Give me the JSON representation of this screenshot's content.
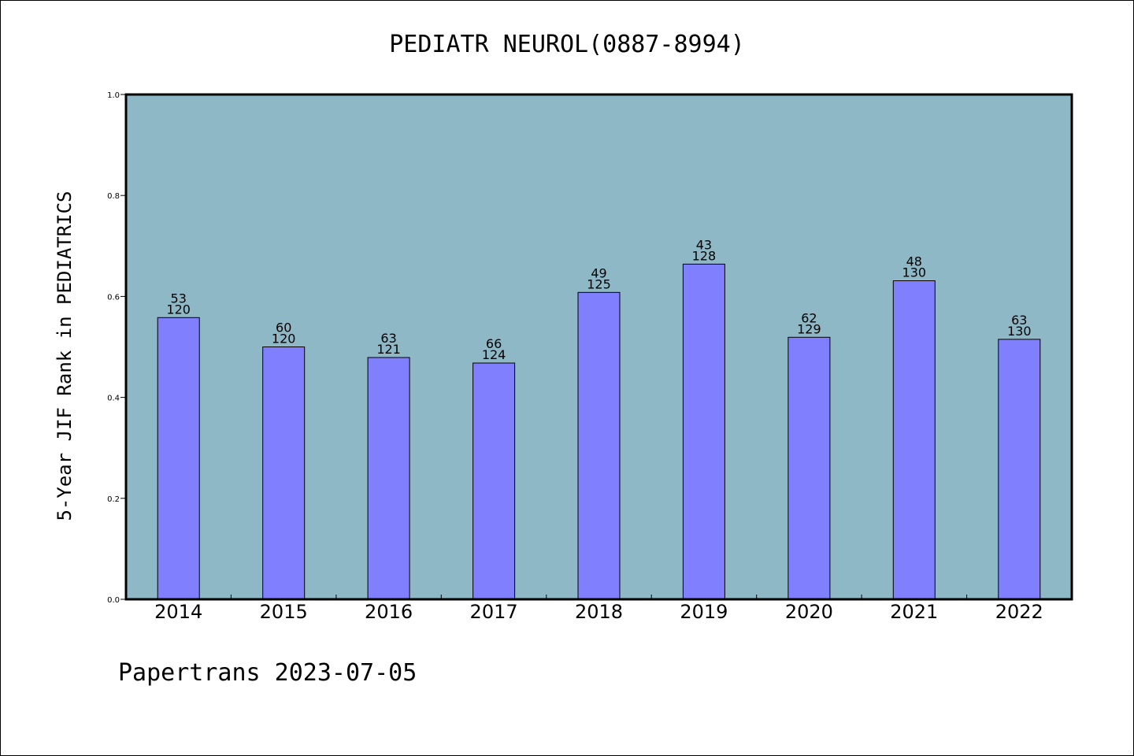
{
  "chart_data": {
    "type": "bar",
    "title": "PEDIATR NEUROL(0887-8994)",
    "xlabel": "",
    "ylabel": "5-Year JIF Rank in PEDIATRICS",
    "ylim": [
      0,
      1.0
    ],
    "yticks": [
      "0.0",
      "0.2",
      "0.4",
      "0.6",
      "0.8",
      "1.0"
    ],
    "grid": false,
    "plot_background": "#8fb8c6",
    "bar_color": "#8080ff",
    "categories": [
      "2014",
      "2015",
      "2016",
      "2017",
      "2018",
      "2019",
      "2020",
      "2021",
      "2022"
    ],
    "values": [
      0.558,
      0.5,
      0.479,
      0.468,
      0.608,
      0.664,
      0.519,
      0.631,
      0.515
    ],
    "rank": [
      "53",
      "60",
      "63",
      "66",
      "49",
      "43",
      "62",
      "48",
      "63"
    ],
    "total": [
      "120",
      "120",
      "121",
      "124",
      "125",
      "128",
      "129",
      "130",
      "130"
    ]
  },
  "footer": "Papertrans 2023-07-05"
}
